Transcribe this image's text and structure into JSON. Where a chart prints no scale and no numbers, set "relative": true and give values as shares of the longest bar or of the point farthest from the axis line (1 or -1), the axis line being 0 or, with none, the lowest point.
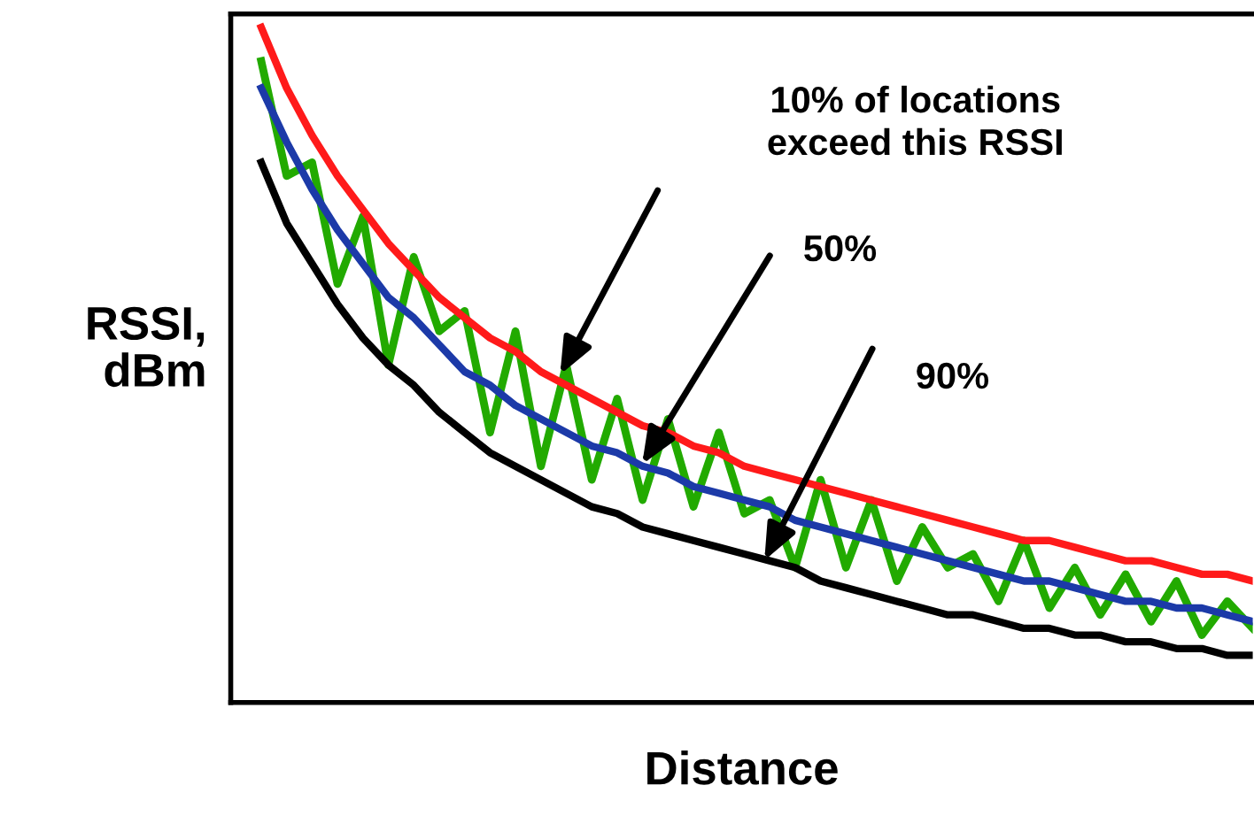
{
  "chart_data": {
    "type": "line",
    "relative": true,
    "xlabel": "Distance",
    "ylabel": "RSSI,\ndBm",
    "categories": [
      null,
      null,
      null,
      null,
      null,
      null,
      null,
      null,
      null,
      null,
      null,
      null,
      null,
      null,
      null,
      null,
      null,
      null,
      null,
      null,
      null,
      null,
      null,
      null,
      null,
      null,
      null,
      null,
      null,
      null,
      null,
      null,
      null,
      null,
      null,
      null,
      null,
      null,
      null,
      null
    ],
    "series": [
      {
        "color": "#22aa00",
        "values": [
          0.95,
          0.78,
          0.8,
          0.62,
          0.72,
          0.5,
          0.66,
          0.55,
          0.58,
          0.4,
          0.55,
          0.35,
          0.5,
          0.33,
          0.45,
          0.3,
          0.42,
          0.29,
          0.4,
          0.28,
          0.3,
          0.2,
          0.33,
          0.2,
          0.3,
          0.18,
          0.26,
          0.2,
          0.22,
          0.15,
          0.24,
          0.14,
          0.2,
          0.13,
          0.19,
          0.12,
          0.18,
          0.1,
          0.15,
          0.11
        ]
      },
      {
        "color": "#ff1a1a",
        "values": [
          1.0,
          0.91,
          0.84,
          0.78,
          0.73,
          0.68,
          0.64,
          0.6,
          0.57,
          0.54,
          0.52,
          0.49,
          0.47,
          0.45,
          0.43,
          0.41,
          0.4,
          0.38,
          0.37,
          0.35,
          0.34,
          0.33,
          0.32,
          0.31,
          0.3,
          0.29,
          0.28,
          0.27,
          0.26,
          0.25,
          0.24,
          0.24,
          0.23,
          0.22,
          0.21,
          0.21,
          0.2,
          0.19,
          0.19,
          0.18
        ]
      },
      {
        "color": "#1c3aa8",
        "values": [
          0.91,
          0.83,
          0.76,
          0.7,
          0.65,
          0.6,
          0.57,
          0.53,
          0.49,
          0.47,
          0.44,
          0.42,
          0.4,
          0.38,
          0.37,
          0.35,
          0.34,
          0.32,
          0.31,
          0.3,
          0.29,
          0.27,
          0.26,
          0.25,
          0.24,
          0.23,
          0.22,
          0.21,
          0.2,
          0.19,
          0.18,
          0.18,
          0.17,
          0.16,
          0.15,
          0.15,
          0.14,
          0.14,
          0.13,
          0.12
        ]
      },
      {
        "color": "#000000",
        "values": [
          0.8,
          0.71,
          0.65,
          0.59,
          0.54,
          0.5,
          0.47,
          0.43,
          0.4,
          0.37,
          0.35,
          0.33,
          0.31,
          0.29,
          0.28,
          0.26,
          0.25,
          0.24,
          0.23,
          0.22,
          0.21,
          0.2,
          0.18,
          0.17,
          0.16,
          0.15,
          0.14,
          0.13,
          0.13,
          0.12,
          0.11,
          0.11,
          0.1,
          0.1,
          0.09,
          0.09,
          0.08,
          0.08,
          0.07,
          0.07
        ]
      }
    ],
    "annotations": [
      "10% of locations\nexceed this RSSI",
      "50%",
      "90%"
    ],
    "grid": false,
    "legend": false
  }
}
